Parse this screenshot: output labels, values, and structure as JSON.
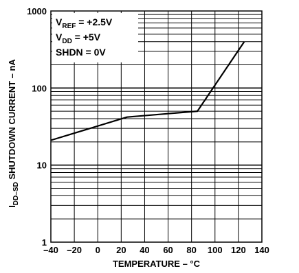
{
  "chart_data": {
    "type": "line",
    "title": "",
    "xlabel": "TEMPERATURE – °C",
    "ylabel": {
      "main": "I",
      "subscript": "DD–SD",
      "rest": " SHUTDOWN CURRENT – nA"
    },
    "xlim": [
      -40,
      140
    ],
    "ylim": [
      1,
      1000
    ],
    "yscale": "log",
    "grid": true,
    "x_ticks": [
      "–40",
      "–20",
      "0",
      "20",
      "40",
      "60",
      "80",
      "100",
      "120",
      "140"
    ],
    "y_ticks": [
      "1",
      "10",
      "100",
      "1000"
    ],
    "series": [
      {
        "x": [
          -40,
          25,
          85,
          125
        ],
        "y": [
          21,
          42,
          50,
          400
        ]
      }
    ],
    "annotations": [
      {
        "main": "V",
        "subscript": "REF",
        "rest": " = +2.5V"
      },
      {
        "main": "V",
        "subscript": "DD",
        "rest": " = +5V"
      },
      {
        "main": "SHDN = 0V",
        "subscript": "",
        "rest": ""
      }
    ],
    "colors": {
      "line": "#000000",
      "grid": "#000000",
      "background": "#ffffff"
    }
  }
}
